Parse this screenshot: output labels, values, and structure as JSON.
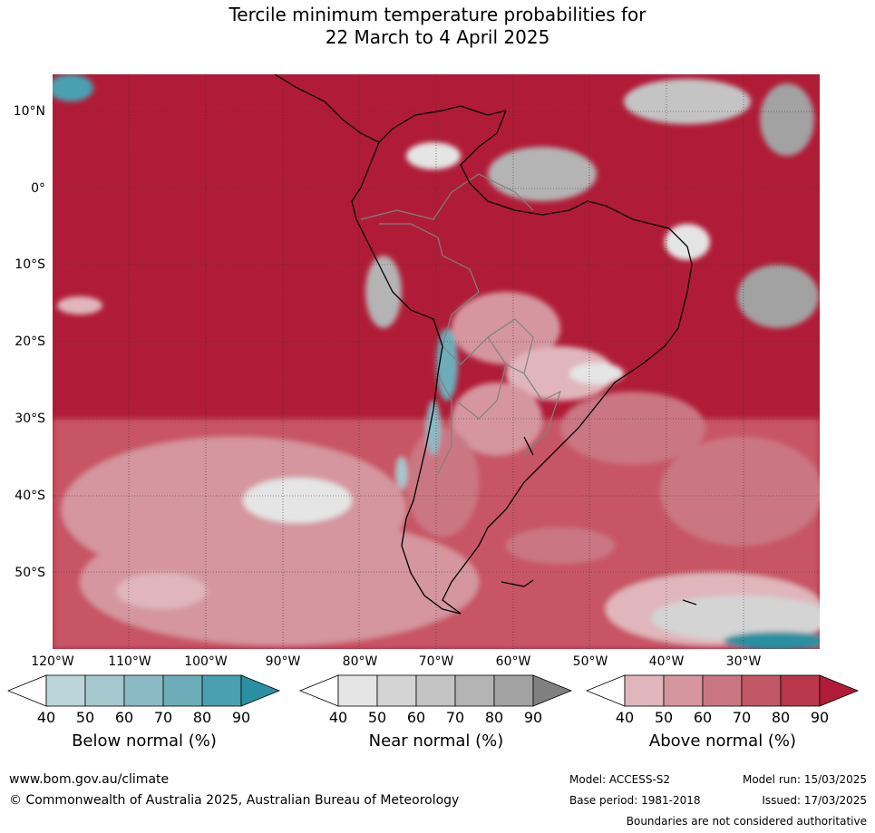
{
  "title_line1": "Tercile minimum temperature probabilities for",
  "title_line2": "22 March to 4 April 2025",
  "map": {
    "longitude_labels": [
      "120°W",
      "110°W",
      "100°W",
      "90°W",
      "80°W",
      "70°W",
      "60°W",
      "50°W",
      "40°W",
      "30°W"
    ],
    "latitude_labels": [
      "10°N",
      "0°",
      "10°S",
      "20°S",
      "30°S",
      "40°S",
      "50°S"
    ],
    "colors": {
      "above_dominant": "#b01c37",
      "ocean_background": "#b01c37",
      "land_outline": "#000000",
      "borders": "#808080",
      "gridlines": "#333333"
    }
  },
  "colorbars": [
    {
      "title": "Below normal (%)",
      "ticks": [
        "40",
        "50",
        "60",
        "70",
        "80",
        "90"
      ],
      "colors": [
        "#ffffff",
        "#bcd5db",
        "#a6c8cf",
        "#8cbac4",
        "#6dadb9",
        "#4aa0b0",
        "#2a8fa0"
      ]
    },
    {
      "title": "Near normal (%)",
      "ticks": [
        "40",
        "50",
        "60",
        "70",
        "80",
        "90"
      ],
      "colors": [
        "#ffffff",
        "#e5e5e5",
        "#d4d4d4",
        "#c4c4c4",
        "#b4b4b4",
        "#a2a2a2",
        "#808080"
      ]
    },
    {
      "title": "Above normal (%)",
      "ticks": [
        "40",
        "50",
        "60",
        "70",
        "80",
        "90"
      ],
      "colors": [
        "#ffffff",
        "#e0b6bc",
        "#d5969f",
        "#ca7783",
        "#c25867",
        "#b9364b",
        "#b01c37"
      ]
    }
  ],
  "footer": {
    "website": "www.bom.gov.au/climate",
    "copyright": "© Commonwealth of Australia 2025, Australian Bureau of Meteorology",
    "model": "Model: ACCESS-S2",
    "base_period": "Base period: 1981-2018",
    "model_run": "Model run: 15/03/2025",
    "issued": "Issued: 17/03/2025",
    "disclaimer": "Boundaries are not considered authoritative"
  }
}
